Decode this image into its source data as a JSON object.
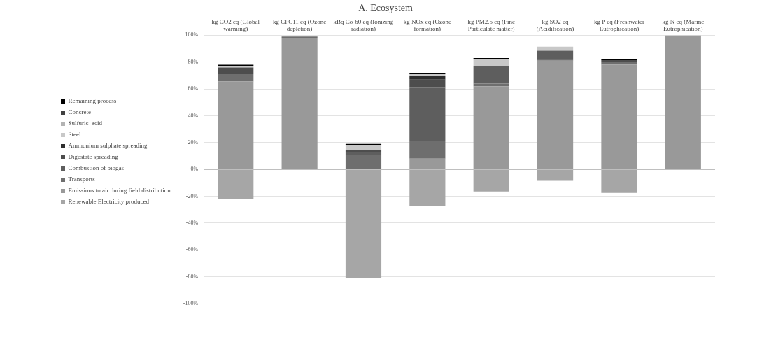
{
  "chart_data": {
    "type": "bar",
    "title": "A. Ecosystem",
    "stacked": true,
    "legend": "left",
    "grid": "y",
    "categories": [
      "kg CO2 eq (Global warming)",
      "kg CFC11 eq (Ozone depletion)",
      "kBq Co-60 eq (Ionizing radiation)",
      "kg NOx eq (Ozone formation)",
      "kg PM2.5 eq (Fine Particulate matter)",
      "kg SO2 eq (Acidification)",
      "kg P eq (Freshwater Eutrophication)",
      "kg N eq (Marine Eutrophication)"
    ],
    "ylim": [
      -100,
      100
    ],
    "yticks": [
      {
        "value": -100,
        "label": "-100%"
      },
      {
        "value": -80,
        "label": "-80%"
      },
      {
        "value": -60,
        "label": "-60%"
      },
      {
        "value": -40,
        "label": "-40%"
      },
      {
        "value": -20,
        "label": "-20%"
      },
      {
        "value": 0,
        "label": "0%"
      },
      {
        "value": 20,
        "label": "20%"
      },
      {
        "value": 40,
        "label": "40%"
      },
      {
        "value": 60,
        "label": "60%"
      },
      {
        "value": 80,
        "label": "80%"
      },
      {
        "value": 100,
        "label": "100%"
      }
    ],
    "series": [
      {
        "name": "Renewable Electricity produced",
        "color": "#a6a6a6",
        "values": [
          -22,
          0,
          -81,
          -27,
          -16.5,
          -8.5,
          -17.5,
          0
        ]
      },
      {
        "name": "Emissions to air during field distribution",
        "color": "#999999",
        "values": [
          65.5,
          98,
          0,
          8,
          62,
          81,
          78,
          100
        ]
      },
      {
        "name": "Transports",
        "color": "#6e6e6e",
        "values": [
          5.5,
          1,
          11,
          13,
          2,
          1,
          2,
          0
        ]
      },
      {
        "name": "Combustion of biogas",
        "color": "#5e5e5e",
        "values": [
          0,
          0,
          2,
          40,
          13,
          6.5,
          0,
          0
        ]
      },
      {
        "name": "Digestate spreading",
        "color": "#4d4d4d",
        "values": [
          5,
          0,
          1.5,
          6,
          0,
          0,
          1.5,
          0
        ]
      },
      {
        "name": "Ammonium sulphate spreading",
        "color": "#2e2e2e",
        "values": [
          0,
          0,
          0,
          3,
          0,
          0,
          0,
          0
        ]
      },
      {
        "name": "Steel",
        "color": "#c8c8c8",
        "values": [
          1,
          0,
          3.5,
          1,
          5,
          3,
          0,
          0
        ]
      },
      {
        "name": "Sulfuric  acid",
        "color": "#b3b3b3",
        "values": [
          null,
          0,
          null,
          0,
          0,
          0,
          0,
          0
        ]
      },
      {
        "name": "Concrete",
        "color": "#404040",
        "values": [
          0,
          0,
          0,
          0,
          0,
          0,
          0,
          0
        ]
      },
      {
        "name": "Remaining process",
        "color": "#000000",
        "values": [
          1,
          0,
          1,
          1,
          1,
          0,
          0.5,
          0
        ]
      }
    ]
  }
}
